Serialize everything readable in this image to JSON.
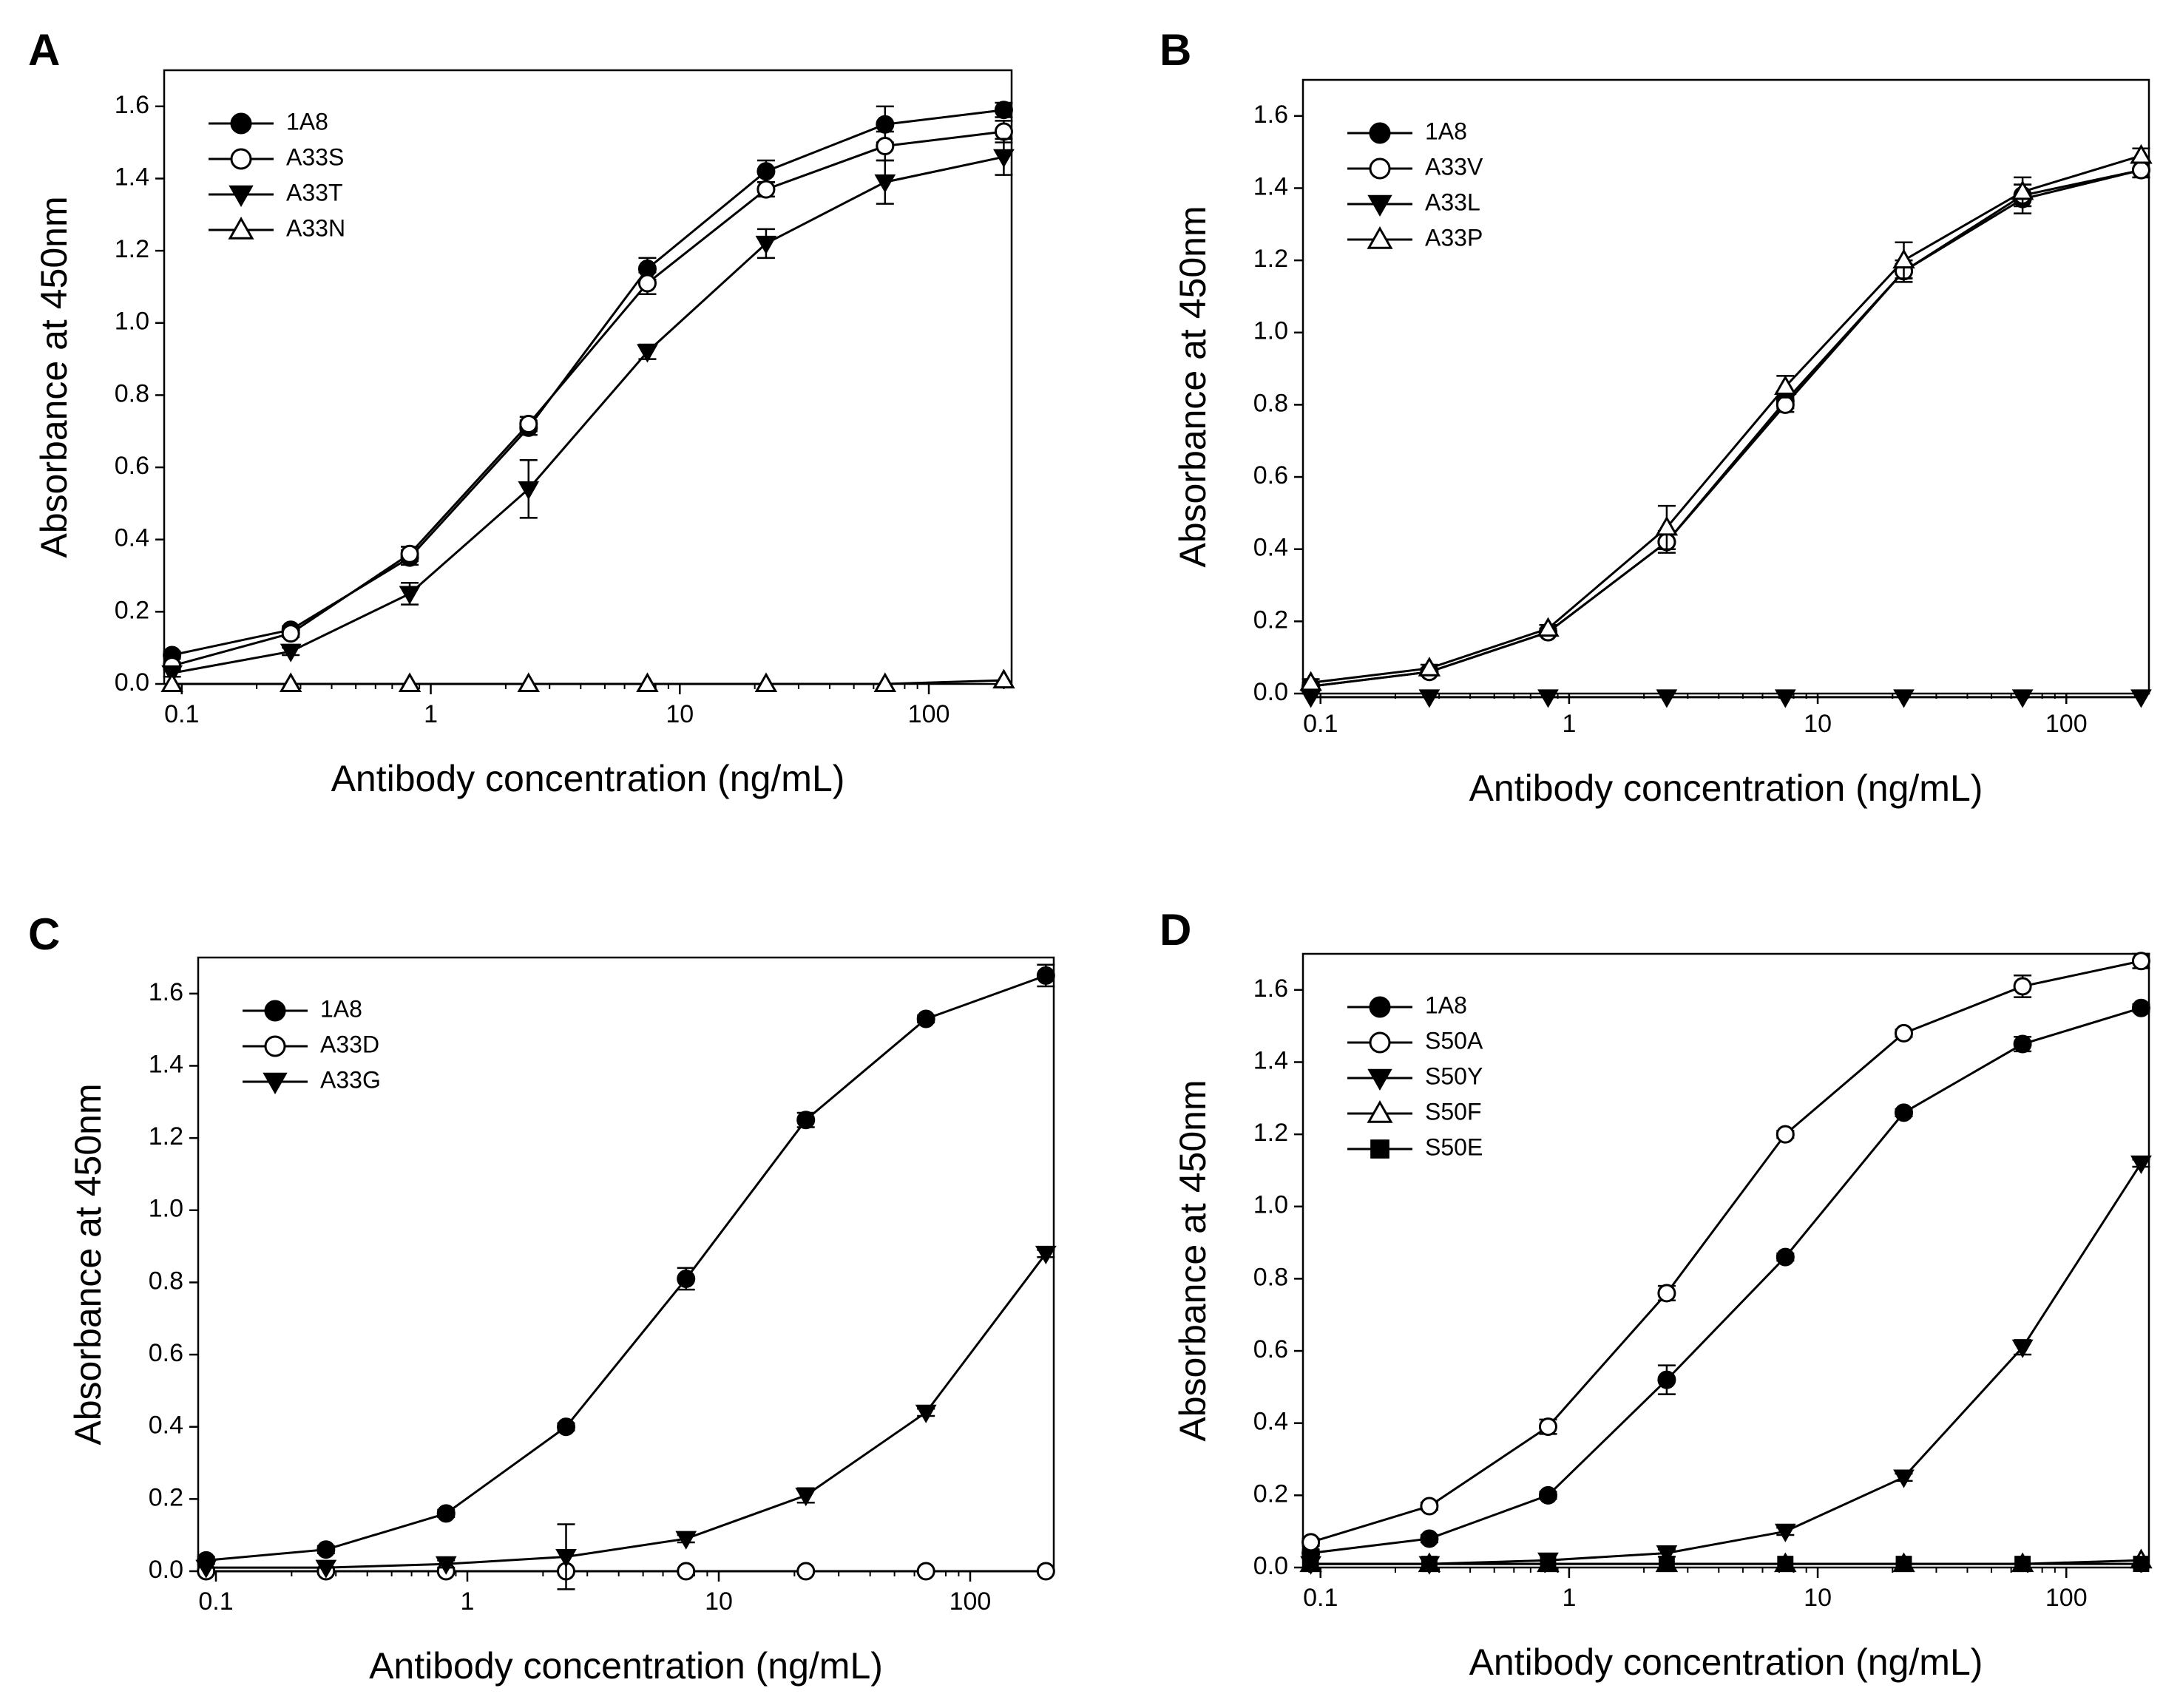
{
  "figure": {
    "x_values": [
      0.0914,
      0.274,
      0.823,
      2.47,
      7.41,
      22.2,
      66.7,
      200
    ],
    "chart_data": [
      {
        "type": "line",
        "panel_label": "A",
        "xlabel": "Antibody concentration (ng/mL)",
        "ylabel": "Absorbance at 450nm",
        "xscale": "log",
        "xlim": [
          0.085,
          215
        ],
        "ylim": [
          0,
          1.7
        ],
        "x_ticks": [
          {
            "value": 0.1,
            "label": "0.1"
          },
          {
            "value": 1,
            "label": "1"
          },
          {
            "value": 10,
            "label": "10"
          },
          {
            "value": 100,
            "label": "100"
          }
        ],
        "y_ticks": [
          "0.0",
          "0.2",
          "0.4",
          "0.6",
          "0.8",
          "1.0",
          "1.2",
          "1.4",
          "1.6"
        ],
        "legend_position": "top-left",
        "x": [
          0.0914,
          0.274,
          0.823,
          2.47,
          7.41,
          22.2,
          66.7,
          200
        ],
        "series": [
          {
            "name": "1A8",
            "marker": "filled-circle",
            "values": [
              0.08,
              0.15,
              0.35,
              0.71,
              1.15,
              1.42,
              1.55,
              1.59
            ],
            "errors": [
              0.01,
              0.01,
              0.02,
              0.02,
              0.03,
              0.03,
              0.05,
              0.02
            ]
          },
          {
            "name": "A33S",
            "marker": "open-circle",
            "values": [
              0.05,
              0.14,
              0.36,
              0.72,
              1.11,
              1.37,
              1.49,
              1.53
            ],
            "errors": [
              0.01,
              0.01,
              0.02,
              0.02,
              0.03,
              0.02,
              0.04,
              0.03
            ]
          },
          {
            "name": "A33T",
            "marker": "filled-triangle-down",
            "values": [
              0.03,
              0.09,
              0.25,
              0.54,
              0.92,
              1.22,
              1.39,
              1.46
            ],
            "errors": [
              0.01,
              0.01,
              0.03,
              0.08,
              0.02,
              0.04,
              0.06,
              0.05
            ]
          },
          {
            "name": "A33N",
            "marker": "open-triangle-up",
            "values": [
              0.0,
              0.0,
              0.0,
              0.0,
              0.0,
              0.0,
              0.0,
              0.01
            ],
            "errors": [
              0,
              0,
              0,
              0,
              0,
              0,
              0,
              0
            ]
          }
        ]
      },
      {
        "type": "line",
        "panel_label": "B",
        "xlabel": "Antibody concentration (ng/mL)",
        "ylabel": "Absorbance at 450nm",
        "xscale": "log",
        "xlim": [
          0.085,
          215
        ],
        "ylim": [
          0,
          1.7
        ],
        "x_ticks": [
          {
            "value": 0.1,
            "label": "0.1"
          },
          {
            "value": 1,
            "label": "1"
          },
          {
            "value": 10,
            "label": "10"
          },
          {
            "value": 100,
            "label": "100"
          }
        ],
        "y_ticks": [
          "0.0",
          "0.2",
          "0.4",
          "0.6",
          "0.8",
          "1.0",
          "1.2",
          "1.4",
          "1.6"
        ],
        "legend_position": "top-left",
        "x": [
          0.0914,
          0.274,
          0.823,
          2.47,
          7.41,
          22.2,
          66.7,
          200
        ],
        "series": [
          {
            "name": "1A8",
            "marker": "filled-circle",
            "values": [
              0.02,
              0.06,
              0.17,
              0.42,
              0.81,
              1.17,
              1.37,
              1.45
            ],
            "errors": [
              0.01,
              0.01,
              0.01,
              0.03,
              0.02,
              0.03,
              0.04,
              0.02
            ]
          },
          {
            "name": "A33V",
            "marker": "open-circle",
            "values": [
              0.02,
              0.06,
              0.17,
              0.42,
              0.8,
              1.17,
              1.38,
              1.45
            ],
            "errors": [
              0.01,
              0.01,
              0.01,
              0.02,
              0.02,
              0.02,
              0.03,
              0.02
            ]
          },
          {
            "name": "A33L",
            "marker": "filled-triangle-down",
            "values": [
              -0.01,
              -0.01,
              -0.01,
              -0.01,
              -0.01,
              -0.01,
              -0.01,
              -0.01
            ],
            "errors": [
              0,
              0,
              0,
              0,
              0,
              0,
              0,
              0
            ]
          },
          {
            "name": "A33P",
            "marker": "open-triangle-up",
            "values": [
              0.03,
              0.07,
              0.18,
              0.46,
              0.85,
              1.2,
              1.39,
              1.49
            ],
            "errors": [
              0.01,
              0.01,
              0.01,
              0.06,
              0.03,
              0.05,
              0.04,
              0.02
            ]
          }
        ]
      },
      {
        "type": "line",
        "panel_label": "C",
        "xlabel": "Antibody concentration (ng/mL)",
        "ylabel": "Absorbance at 450nm",
        "xscale": "log",
        "xlim": [
          0.085,
          215
        ],
        "ylim": [
          0,
          1.7
        ],
        "x_ticks": [
          {
            "value": 0.1,
            "label": "0.1"
          },
          {
            "value": 1,
            "label": "1"
          },
          {
            "value": 10,
            "label": "10"
          },
          {
            "value": 100,
            "label": "100"
          }
        ],
        "y_ticks": [
          "0.0",
          "0.2",
          "0.4",
          "0.6",
          "0.8",
          "1.0",
          "1.2",
          "1.4",
          "1.6"
        ],
        "legend_position": "top-left",
        "x": [
          0.0914,
          0.274,
          0.823,
          2.47,
          7.41,
          22.2,
          66.7,
          200
        ],
        "series": [
          {
            "name": "1A8",
            "marker": "filled-circle",
            "values": [
              0.03,
              0.06,
              0.16,
              0.4,
              0.81,
              1.25,
              1.53,
              1.65
            ],
            "errors": [
              0.01,
              0.01,
              0.01,
              0.01,
              0.03,
              0.02,
              0.01,
              0.03
            ]
          },
          {
            "name": "A33D",
            "marker": "open-circle",
            "values": [
              0.0,
              0.0,
              0.0,
              0.0,
              0.0,
              0.0,
              0.0,
              0.0
            ],
            "errors": [
              0,
              0,
              0,
              0,
              0,
              0,
              0,
              0
            ]
          },
          {
            "name": "A33G",
            "marker": "filled-triangle-down",
            "values": [
              0.01,
              0.01,
              0.02,
              0.04,
              0.09,
              0.21,
              0.44,
              0.88
            ],
            "errors": [
              0,
              0,
              0.01,
              0.09,
              0.01,
              0.02,
              0.01,
              0.01
            ]
          }
        ]
      },
      {
        "type": "line",
        "panel_label": "D",
        "xlabel": "Antibody concentration (ng/mL)",
        "ylabel": "Absorbance at 450nm",
        "xscale": "log",
        "xlim": [
          0.085,
          215
        ],
        "ylim": [
          0,
          1.7
        ],
        "x_ticks": [
          {
            "value": 0.1,
            "label": "0.1"
          },
          {
            "value": 1,
            "label": "1"
          },
          {
            "value": 10,
            "label": "10"
          },
          {
            "value": 100,
            "label": "100"
          }
        ],
        "y_ticks": [
          "0.0",
          "0.2",
          "0.4",
          "0.6",
          "0.8",
          "1.0",
          "1.2",
          "1.4",
          "1.6"
        ],
        "legend_position": "top-left",
        "x": [
          0.0914,
          0.274,
          0.823,
          2.47,
          7.41,
          22.2,
          66.7,
          200
        ],
        "series": [
          {
            "name": "1A8",
            "marker": "filled-circle",
            "values": [
              0.04,
              0.08,
              0.2,
              0.52,
              0.86,
              1.26,
              1.45,
              1.55
            ],
            "errors": [
              0.01,
              0.01,
              0.01,
              0.04,
              0.01,
              0.01,
              0.02,
              0.01
            ]
          },
          {
            "name": "S50A",
            "marker": "open-circle",
            "values": [
              0.07,
              0.17,
              0.39,
              0.76,
              1.2,
              1.48,
              1.61,
              1.68
            ],
            "errors": [
              0.01,
              0.01,
              0.02,
              0.02,
              0.01,
              0.01,
              0.03,
              0.02
            ]
          },
          {
            "name": "S50Y",
            "marker": "filled-triangle-down",
            "values": [
              0.01,
              0.01,
              0.02,
              0.04,
              0.1,
              0.25,
              0.61,
              1.12
            ],
            "errors": [
              0,
              0,
              0,
              0.01,
              0.01,
              0.01,
              0.02,
              0.01
            ]
          },
          {
            "name": "S50F",
            "marker": "open-triangle-up",
            "values": [
              0.01,
              0.01,
              0.01,
              0.01,
              0.01,
              0.01,
              0.01,
              0.02
            ],
            "errors": [
              0,
              0,
              0,
              0,
              0,
              0,
              0,
              0
            ]
          },
          {
            "name": "S50E",
            "marker": "filled-square",
            "values": [
              0.01,
              0.01,
              0.01,
              0.01,
              0.01,
              0.01,
              0.01,
              0.01
            ],
            "errors": [
              0,
              0,
              0,
              0,
              0,
              0,
              0,
              0
            ]
          }
        ]
      }
    ]
  }
}
